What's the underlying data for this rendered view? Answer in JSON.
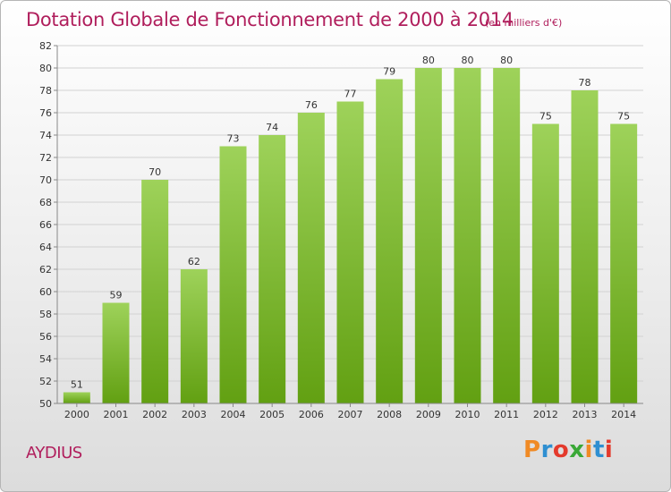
{
  "header": {
    "title": "Dotation Globale de Fonctionnement de 2000 à 2014",
    "unit": "(en milliers d'€)"
  },
  "footer": {
    "commune": "AYDIUS",
    "logo_text": "Proxiti",
    "logo_colors": [
      "#f08a24",
      "#2f8fd1",
      "#e43a2c",
      "#3aa837",
      "#f08a24",
      "#2f8fd1",
      "#e43a2c"
    ]
  },
  "chart_data": {
    "type": "bar",
    "categories": [
      "2000",
      "2001",
      "2002",
      "2003",
      "2004",
      "2005",
      "2006",
      "2007",
      "2008",
      "2009",
      "2010",
      "2011",
      "2012",
      "2013",
      "2014"
    ],
    "values": [
      51,
      59,
      70,
      62,
      73,
      74,
      76,
      77,
      79,
      80,
      80,
      80,
      75,
      78,
      75
    ],
    "data_labels": [
      "51",
      "59",
      "70",
      "62",
      "73",
      "74",
      "76",
      "77",
      "79",
      "80",
      "80",
      "80",
      "75",
      "78",
      "75"
    ],
    "ylim": [
      50,
      82
    ],
    "yticks": [
      "50",
      "52",
      "54",
      "56",
      "58",
      "60",
      "62",
      "64",
      "66",
      "68",
      "70",
      "72",
      "74",
      "76",
      "78",
      "80",
      "82"
    ],
    "grid": true,
    "bar_color_top": "#9ed25a",
    "bar_color_bottom": "#62a012"
  }
}
